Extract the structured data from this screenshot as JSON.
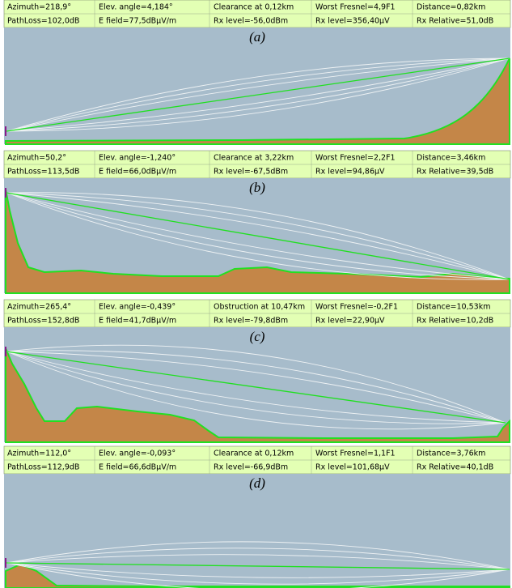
{
  "panels": [
    {
      "label": "(a)",
      "rows": [
        [
          "Azimuth=218,9°",
          "Elev. angle=4,184°",
          "Clearance at 0,12km",
          "Worst Fresnel=4,9F1",
          "Distance=0,82km"
        ],
        [
          "PathLoss=102,0dB",
          "E field=77,5dBµV/m",
          "Rx level=-56,0dBm",
          "Rx level=356,40µV",
          "Rx Relative=51,0dB"
        ]
      ]
    },
    {
      "label": "(b)",
      "rows": [
        [
          "Azimuth=50,2°",
          "Elev. angle=-1,240°",
          "Clearance at 3,22km",
          "Worst Fresnel=2,2F1",
          "Distance=3,46km"
        ],
        [
          "PathLoss=113,5dB",
          "E field=66,0dBµV/m",
          "Rx level=-67,5dBm",
          "Rx level=94,86µV",
          "Rx Relative=39,5dB"
        ]
      ]
    },
    {
      "label": "(c)",
      "rows": [
        [
          "Azimuth=265,4°",
          "Elev. angle=-0,439°",
          "Obstruction at 10,47km",
          "Worst Fresnel=-0,2F1",
          "Distance=10,53km"
        ],
        [
          "PathLoss=152,8dB",
          "E field=41,7dBµV/m",
          "Rx level=-79,8dBm",
          "Rx level=22,90µV",
          "Rx Relative=10,2dB"
        ]
      ]
    },
    {
      "label": "(d)",
      "rows": [
        [
          "Azimuth=112,0°",
          "Elev. angle=-0,093°",
          "Clearance at 0,12km",
          "Worst Fresnel=1,1F1",
          "Distance=3,76km"
        ],
        [
          "PathLoss=112,9dB",
          "E field=66,6dBµV/m",
          "Rx level=-66,9dBm",
          "Rx level=101,68µV",
          "Rx Relative=40,1dB"
        ]
      ]
    }
  ]
}
